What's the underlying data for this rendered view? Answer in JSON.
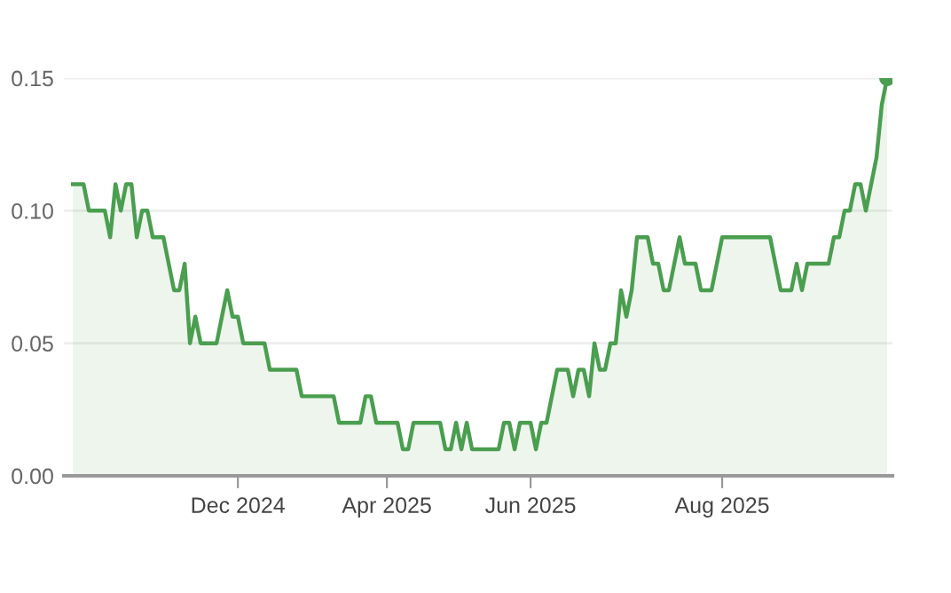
{
  "chart_data": {
    "type": "area",
    "ylim": [
      0,
      0.15
    ],
    "yticks": [
      {
        "value": 0,
        "label": "0.00"
      },
      {
        "value": 0.05,
        "label": "0.05"
      },
      {
        "value": 0.1,
        "label": "0.10"
      },
      {
        "value": 0.15,
        "label": "0.15"
      }
    ],
    "categories": [
      null,
      null,
      null,
      null,
      null,
      null,
      null,
      null,
      null,
      null,
      null,
      null,
      null,
      null,
      null,
      null,
      null,
      null,
      null,
      null,
      null,
      null,
      null,
      null,
      null,
      null,
      null,
      null,
      null,
      null,
      null,
      "Dec 2024",
      null,
      null,
      null,
      null,
      null,
      null,
      null,
      null,
      null,
      null,
      null,
      null,
      null,
      null,
      null,
      null,
      null,
      null,
      null,
      null,
      null,
      null,
      null,
      null,
      null,
      null,
      null,
      "Apr 2025",
      null,
      null,
      null,
      null,
      null,
      null,
      null,
      null,
      null,
      null,
      null,
      null,
      null,
      null,
      null,
      null,
      null,
      null,
      null,
      null,
      null,
      null,
      null,
      null,
      null,
      null,
      "Jun 2025",
      null,
      null,
      null,
      null,
      null,
      null,
      null,
      null,
      null,
      null,
      null,
      null,
      null,
      null,
      null,
      null,
      null,
      null,
      null,
      null,
      null,
      null,
      null,
      null,
      null,
      null,
      null,
      null,
      null,
      null,
      null,
      null,
      null,
      null,
      null,
      "Aug 2025",
      null,
      null,
      null,
      null,
      null,
      null,
      null,
      null,
      null,
      null,
      null,
      null,
      null,
      null,
      null,
      null,
      null,
      null,
      null,
      null,
      null,
      null,
      null,
      null,
      null,
      null,
      null,
      null,
      null,
      null,
      null
    ],
    "grid": "y",
    "legend": false,
    "series": [
      {
        "color": "#4a9e4f",
        "marker": "none",
        "values": [
          0.11,
          0.11,
          0.11,
          0.1,
          0.1,
          0.1,
          0.1,
          0.09,
          0.11,
          0.1,
          0.11,
          0.11,
          0.09,
          0.1,
          0.1,
          0.09,
          0.09,
          0.09,
          0.08,
          0.07,
          0.07,
          0.08,
          0.05,
          0.06,
          0.05,
          0.05,
          0.05,
          0.05,
          0.06,
          0.07,
          0.06,
          0.06,
          0.05,
          0.05,
          0.05,
          0.05,
          0.05,
          0.04,
          0.04,
          0.04,
          0.04,
          0.04,
          0.04,
          0.03,
          0.03,
          0.03,
          0.03,
          0.03,
          0.03,
          0.03,
          0.02,
          0.02,
          0.02,
          0.02,
          0.02,
          0.03,
          0.03,
          0.02,
          0.02,
          0.02,
          0.02,
          0.02,
          0.01,
          0.01,
          0.02,
          0.02,
          0.02,
          0.02,
          0.02,
          0.02,
          0.01,
          0.01,
          0.02,
          0.01,
          0.02,
          0.01,
          0.01,
          0.01,
          0.01,
          0.01,
          0.01,
          0.02,
          0.02,
          0.01,
          0.02,
          0.02,
          0.02,
          0.01,
          0.02,
          0.02,
          0.03,
          0.04,
          0.04,
          0.04,
          0.03,
          0.04,
          0.04,
          0.03,
          0.05,
          0.04,
          0.04,
          0.05,
          0.05,
          0.07,
          0.06,
          0.07,
          0.09,
          0.09,
          0.09,
          0.08,
          0.08,
          0.07,
          0.07,
          0.08,
          0.09,
          0.08,
          0.08,
          0.08,
          0.07,
          0.07,
          0.07,
          0.08,
          0.09,
          0.09,
          0.09,
          0.09,
          0.09,
          0.09,
          0.09,
          0.09,
          0.09,
          0.09,
          0.08,
          0.07,
          0.07,
          0.07,
          0.08,
          0.07,
          0.08,
          0.08,
          0.08,
          0.08,
          0.08,
          0.09,
          0.09,
          0.1,
          0.1,
          0.11,
          0.11,
          0.1,
          0.11,
          0.12,
          0.14,
          0.15
        ]
      },
      {
        "type": "scatter",
        "color": "#4a9e4f",
        "marker": "circle",
        "values": [
          null,
          null,
          null,
          null,
          null,
          null,
          null,
          null,
          null,
          null,
          null,
          null,
          null,
          null,
          null,
          null,
          null,
          null,
          null,
          null,
          null,
          null,
          null,
          null,
          null,
          null,
          null,
          null,
          null,
          null,
          null,
          null,
          null,
          null,
          null,
          null,
          null,
          null,
          null,
          null,
          null,
          null,
          null,
          null,
          null,
          null,
          null,
          null,
          null,
          null,
          null,
          null,
          null,
          null,
          null,
          null,
          null,
          null,
          null,
          null,
          null,
          null,
          null,
          null,
          null,
          null,
          null,
          null,
          null,
          null,
          null,
          null,
          null,
          null,
          null,
          null,
          null,
          null,
          null,
          null,
          null,
          null,
          null,
          null,
          null,
          null,
          null,
          null,
          null,
          null,
          null,
          null,
          null,
          null,
          null,
          null,
          null,
          null,
          null,
          null,
          null,
          null,
          null,
          null,
          null,
          null,
          null,
          null,
          null,
          null,
          null,
          null,
          null,
          null,
          null,
          null,
          null,
          null,
          null,
          null,
          null,
          null,
          null,
          null,
          null,
          null,
          null,
          null,
          null,
          null,
          null,
          null,
          null,
          null,
          null,
          null,
          null,
          null,
          null,
          null,
          null,
          null,
          null,
          null,
          null,
          null,
          null,
          null,
          null,
          null,
          null,
          null,
          null,
          0.15
        ]
      }
    ]
  }
}
